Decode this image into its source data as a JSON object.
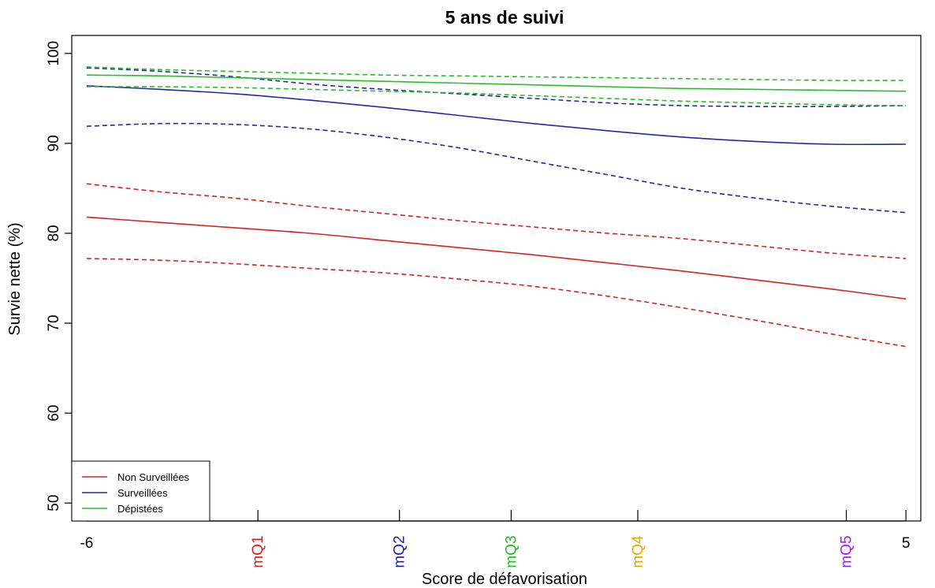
{
  "chart_data": {
    "type": "line",
    "title": "5 ans de suivi",
    "xlabel": "Score de défavorisation",
    "ylabel": "Survie nette (%)",
    "xlim": [
      -6.2,
      5.2
    ],
    "ylim": [
      48,
      102
    ],
    "y_ticks": [
      50,
      60,
      70,
      80,
      90,
      100
    ],
    "x_ticks": [
      {
        "x": -6,
        "label": "-6",
        "color": "#000000",
        "vertical": false
      },
      {
        "x": -3.7,
        "label": "mQ1",
        "color": "#d62020",
        "vertical": true
      },
      {
        "x": -1.8,
        "label": "mQ2",
        "color": "#2020a8",
        "vertical": true
      },
      {
        "x": -0.3,
        "label": "mQ3",
        "color": "#1fbf1f",
        "vertical": true
      },
      {
        "x": 1.4,
        "label": "mQ4",
        "color": "#e8a800",
        "vertical": true
      },
      {
        "x": 4.2,
        "label": "mQ5",
        "color": "#a020f0",
        "vertical": true
      },
      {
        "x": 5,
        "label": "5",
        "color": "#000000",
        "vertical": false
      }
    ],
    "x": [
      -6,
      -5,
      -4,
      -3,
      -2,
      -1,
      0,
      1,
      2,
      3,
      4,
      5
    ],
    "series": [
      {
        "name": "Non Surveillées",
        "color": "#d42424",
        "values": [
          81.8,
          81.2,
          80.6,
          80.0,
          79.2,
          78.4,
          77.6,
          76.7,
          75.8,
          74.8,
          73.8,
          72.7
        ],
        "lower": [
          77.2,
          77.0,
          76.6,
          76.1,
          75.6,
          74.9,
          74.1,
          73.0,
          71.7,
          70.3,
          68.8,
          67.4
        ],
        "upper": [
          85.5,
          84.6,
          83.9,
          83.0,
          82.2,
          81.4,
          80.7,
          80.0,
          79.4,
          78.6,
          77.8,
          77.2
        ]
      },
      {
        "name": "Surveillées",
        "color": "#2828a4",
        "values": [
          96.4,
          96.0,
          95.5,
          94.8,
          94.0,
          93.1,
          92.2,
          91.4,
          90.7,
          90.2,
          89.9,
          89.9
        ],
        "lower": [
          91.9,
          92.2,
          92.1,
          91.6,
          90.7,
          89.5,
          88.0,
          86.5,
          85.0,
          83.9,
          83.0,
          82.3
        ],
        "upper": [
          98.4,
          98.0,
          97.4,
          96.6,
          96.0,
          95.5,
          95.0,
          94.5,
          94.2,
          94.1,
          94.1,
          94.2
        ]
      },
      {
        "name": "Dépistées",
        "color": "#28bf28",
        "values": [
          97.6,
          97.5,
          97.3,
          97.1,
          96.9,
          96.7,
          96.5,
          96.3,
          96.1,
          96.0,
          95.9,
          95.8
        ],
        "lower": [
          96.3,
          96.3,
          96.2,
          96.0,
          95.8,
          95.6,
          95.3,
          95.0,
          94.7,
          94.5,
          94.3,
          94.2
        ],
        "upper": [
          98.5,
          98.2,
          98.0,
          97.8,
          97.6,
          97.5,
          97.4,
          97.3,
          97.2,
          97.1,
          97.0,
          97.0
        ]
      }
    ],
    "grid": false,
    "legend": "bottom-left"
  }
}
